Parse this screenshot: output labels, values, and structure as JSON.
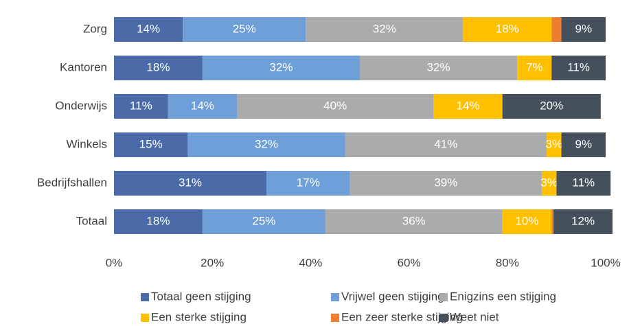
{
  "chart_data": {
    "type": "stacked-bar-horizontal",
    "categories": [
      "Zorg",
      "Kantoren",
      "Onderwijs",
      "Winkels",
      "Bedrijfshallen",
      "Totaal"
    ],
    "series": [
      {
        "name": "Totaal geen stijging",
        "color": "#4a6ba8",
        "values": [
          14,
          18,
          11,
          15,
          31,
          18
        ],
        "value_labels": [
          "14%",
          "18%",
          "11%",
          "15%",
          "31%",
          "18%"
        ]
      },
      {
        "name": "Vrijwel geen stijging",
        "color": "#6f9fd8",
        "values": [
          25,
          32,
          14,
          32,
          17,
          25
        ],
        "value_labels": [
          "25%",
          "32%",
          "14%",
          "32%",
          "17%",
          "25%"
        ]
      },
      {
        "name": "Enigzins een stijging",
        "color": "#a9abad",
        "values": [
          32,
          32,
          40,
          41,
          39,
          36
        ],
        "value_labels": [
          "32%",
          "32%",
          "40%",
          "41%",
          "39%",
          "36%"
        ]
      },
      {
        "name": "Een sterke stijging",
        "color": "#ffc000",
        "values": [
          18,
          7,
          14,
          3,
          3,
          10
        ],
        "value_labels": [
          "18%",
          "7%",
          "14%",
          "3%",
          "3%",
          "10%"
        ]
      },
      {
        "name": "Een zeer sterke stijging",
        "color": "#ed7d31",
        "values": [
          2,
          0,
          0,
          0,
          0,
          0.4
        ],
        "value_labels": [
          null,
          null,
          null,
          null,
          null,
          null
        ]
      },
      {
        "name": "Weet niet",
        "color": "#44505b",
        "values": [
          9,
          11,
          20,
          9,
          11,
          12
        ],
        "value_labels": [
          "9%",
          "11%",
          "20%",
          "9%",
          "11%",
          "12%"
        ]
      }
    ],
    "xlim": [
      0,
      100
    ],
    "xticks": [
      {
        "value": 0,
        "label": "0%"
      },
      {
        "value": 20,
        "label": "20%"
      },
      {
        "value": 40,
        "label": "40%"
      },
      {
        "value": 60,
        "label": "60%"
      },
      {
        "value": 80,
        "label": "80%"
      },
      {
        "value": 100,
        "label": "100%"
      }
    ]
  }
}
